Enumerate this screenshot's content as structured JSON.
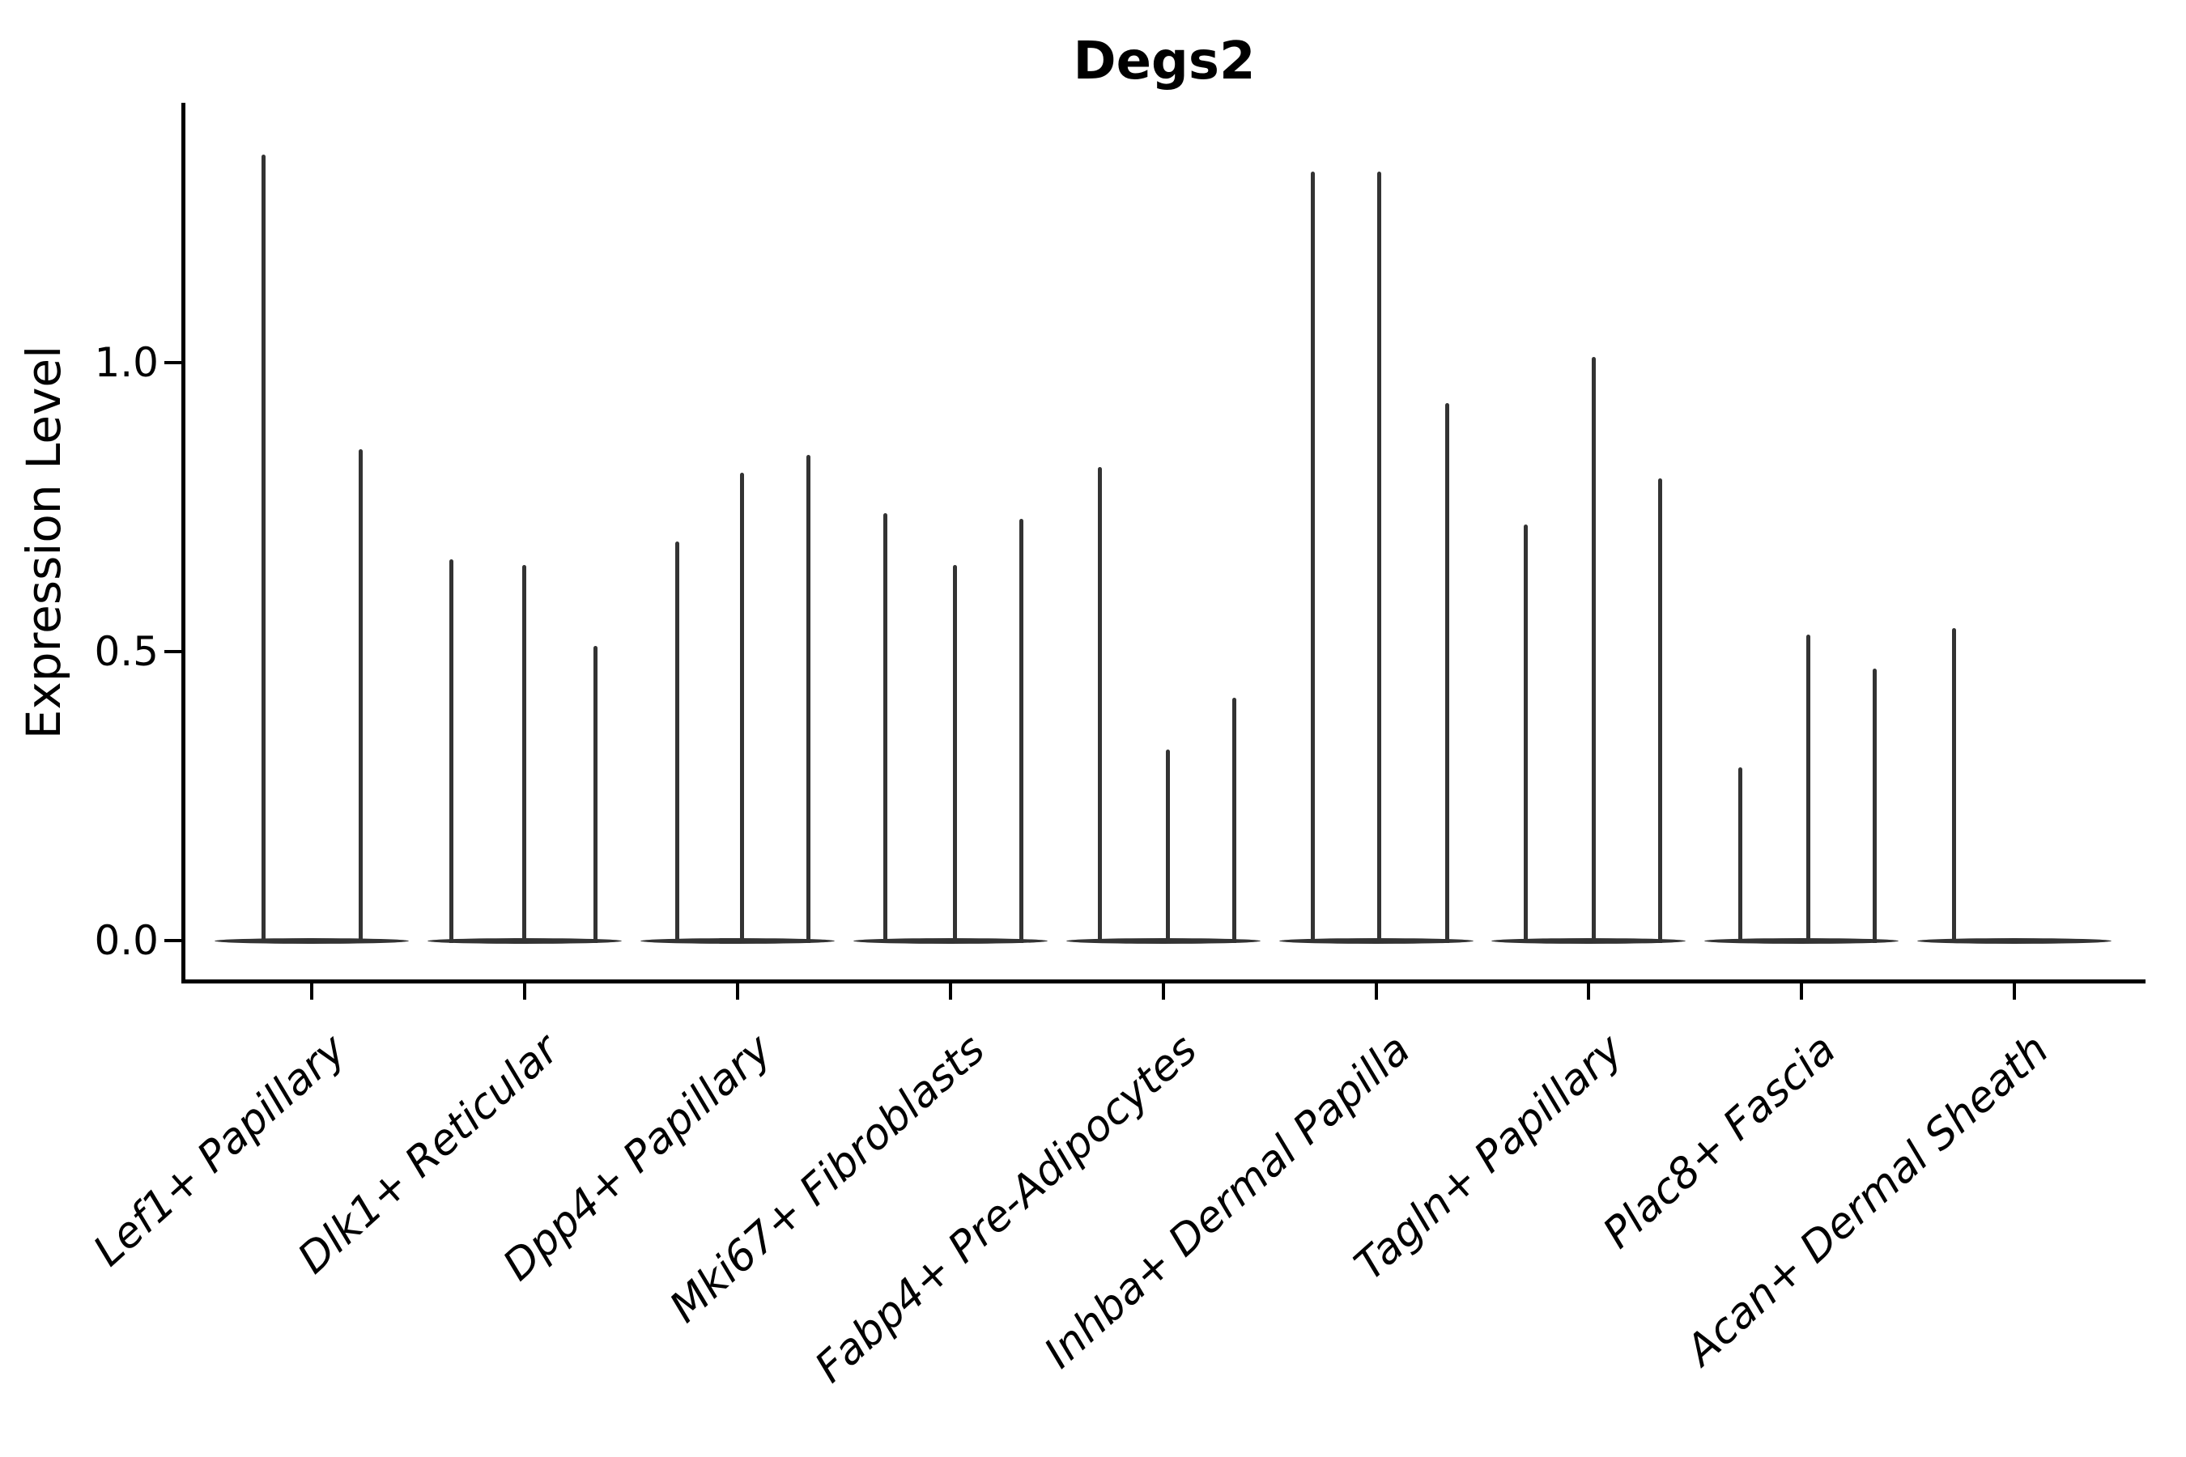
{
  "chart_data": {
    "type": "violin",
    "title": "Degs2",
    "ylabel": "Expression Level",
    "yticks": [
      {
        "value": 0.0,
        "label": "0.0"
      },
      {
        "value": 0.5,
        "label": "0.5"
      },
      {
        "value": 1.0,
        "label": "1.0"
      }
    ],
    "ylim": [
      -0.07,
      1.45
    ],
    "grid": false,
    "legend": "none",
    "xlabel": "",
    "xtick_rotation_deg": 42,
    "line_color": "#333333",
    "groups": [
      {
        "label": "Lef1+ Papillary",
        "violins": [
          {
            "offset": -60,
            "max": 1.36
          },
          {
            "offset": 60,
            "max": 0.85
          }
        ]
      },
      {
        "label": "Dlk1+ Reticular",
        "violins": [
          {
            "offset": -90,
            "max": 0.66
          },
          {
            "offset": 0,
            "max": 0.65
          },
          {
            "offset": 88,
            "max": 0.51
          }
        ]
      },
      {
        "label": "Dpp4+ Papillary",
        "violins": [
          {
            "offset": -74,
            "max": 0.69
          },
          {
            "offset": 6,
            "max": 0.81
          },
          {
            "offset": 88,
            "max": 0.84
          }
        ]
      },
      {
        "label": "Mki67+ Fibroblasts",
        "violins": [
          {
            "offset": -80,
            "max": 0.74
          },
          {
            "offset": 6,
            "max": 0.65
          },
          {
            "offset": 88,
            "max": 0.73
          }
        ]
      },
      {
        "label": "Fabp4+ Pre-Adipocytes",
        "violins": [
          {
            "offset": -78,
            "max": 0.82
          },
          {
            "offset": 6,
            "max": 0.33
          },
          {
            "offset": 88,
            "max": 0.42
          }
        ]
      },
      {
        "label": "Inhba+ Dermal Papilla",
        "violins": [
          {
            "offset": -78,
            "max": 1.33
          },
          {
            "offset": 4,
            "max": 1.33
          },
          {
            "offset": 88,
            "max": 0.93
          }
        ]
      },
      {
        "label": "Tagln+ Papillary",
        "violins": [
          {
            "offset": -78,
            "max": 0.72
          },
          {
            "offset": 6,
            "max": 1.01
          },
          {
            "offset": 88,
            "max": 0.8
          }
        ]
      },
      {
        "label": "Plac8+ Fascia",
        "violins": [
          {
            "offset": -76,
            "max": 0.3
          },
          {
            "offset": 8,
            "max": 0.53
          },
          {
            "offset": 90,
            "max": 0.47
          }
        ]
      },
      {
        "label": "Acan+ Dermal Sheath",
        "violins": [
          {
            "offset": -75,
            "max": 0.54
          }
        ]
      }
    ]
  }
}
